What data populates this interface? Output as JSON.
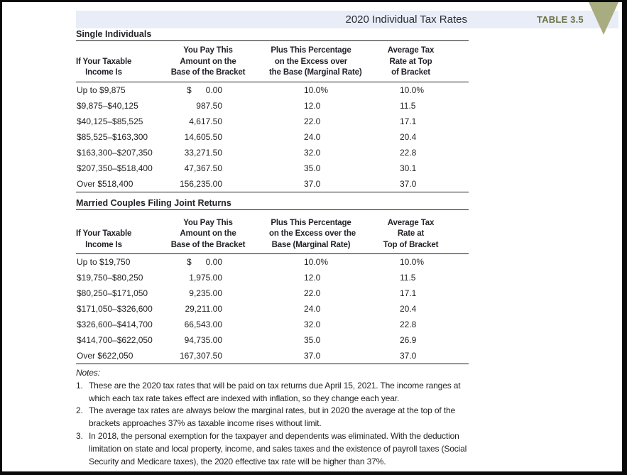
{
  "header": {
    "title": "2020 Individual Tax Rates",
    "table_label": "TABLE 3.5",
    "band_color": "#e8edf7",
    "label_color": "#6d7245",
    "triangle_color": "#a9ac81"
  },
  "tables": [
    {
      "section_title": "Single Individuals",
      "columns": [
        {
          "lines": [
            "If Your Taxable",
            "Income Is"
          ]
        },
        {
          "lines": [
            "You Pay This",
            "Amount on the",
            "Base of the Bracket"
          ]
        },
        {
          "lines": [
            "Plus This Percentage",
            "on the Excess over",
            "the Base (Marginal Rate)"
          ]
        },
        {
          "lines": [
            "Average Tax",
            "Rate at Top",
            "of Bracket"
          ]
        }
      ],
      "rows": [
        {
          "range": "Up to $9,875",
          "dollar": "$",
          "amount": "0.00",
          "marginal": "10.0%",
          "average": "10.0%"
        },
        {
          "range": "$9,875–$40,125",
          "amount": "987.50",
          "marginal": "12.0",
          "average": "11.5"
        },
        {
          "range": "$40,125–$85,525",
          "amount": "4,617.50",
          "marginal": "22.0",
          "average": "17.1"
        },
        {
          "range": "$85,525–$163,300",
          "amount": "14,605.50",
          "marginal": "24.0",
          "average": "20.4"
        },
        {
          "range": "$163,300–$207,350",
          "amount": "33,271.50",
          "marginal": "32.0",
          "average": "22.8"
        },
        {
          "range": "$207,350–$518,400",
          "amount": "47,367.50",
          "marginal": "35.0",
          "average": "30.1"
        },
        {
          "range": "Over $518,400",
          "amount": "156,235.00",
          "marginal": "37.0",
          "average": "37.0"
        }
      ]
    },
    {
      "section_title": "Married Couples Filing Joint Returns",
      "columns": [
        {
          "lines": [
            "If Your Taxable",
            "Income Is"
          ]
        },
        {
          "lines": [
            "You Pay This",
            "Amount on the",
            "Base of the Bracket"
          ]
        },
        {
          "lines": [
            "Plus This Percentage",
            "on the Excess over the",
            "Base (Marginal Rate)"
          ]
        },
        {
          "lines": [
            "Average Tax",
            "Rate at",
            "Top of Bracket"
          ]
        }
      ],
      "rows": [
        {
          "range": "Up to $19,750",
          "dollar": "$",
          "amount": "0.00",
          "marginal": "10.0%",
          "average": "10.0%"
        },
        {
          "range": "$19,750–$80,250",
          "amount": "1,975.00",
          "marginal": "12.0",
          "average": "11.5"
        },
        {
          "range": "$80,250–$171,050",
          "amount": "9,235.00",
          "marginal": "22.0",
          "average": "17.1"
        },
        {
          "range": "$171,050–$326,600",
          "amount": "29,211.00",
          "marginal": "24.0",
          "average": "20.4"
        },
        {
          "range": "$326,600–$414,700",
          "amount": "66,543.00",
          "marginal": "32.0",
          "average": "22.8"
        },
        {
          "range": "$414,700–$622,050",
          "amount": "94,735.00",
          "marginal": "35.0",
          "average": "26.9"
        },
        {
          "range": "Over $622,050",
          "amount": "167,307.50",
          "marginal": "37.0",
          "average": "37.0"
        }
      ]
    }
  ],
  "notes": {
    "label": "Notes:",
    "items": [
      {
        "number": "1.",
        "lines": [
          "These are the 2020 tax rates that will be paid on tax returns due April 15, 2021. The income ranges at",
          "which each tax rate takes effect are indexed with inflation, so they change each year."
        ]
      },
      {
        "number": "2.",
        "lines": [
          "The average tax rates are always below the marginal rates, but in 2020 the average at the top of the",
          "brackets approaches 37% as taxable income rises without limit."
        ]
      },
      {
        "number": "3.",
        "lines": [
          "In 2018, the personal exemption for the taxpayer and dependents was eliminated. With the deduction",
          "limitation on state and local property, income, and sales taxes and the existence of payroll taxes (Social",
          "Security and Medicare taxes), the 2020 effective tax rate will be higher than 37%."
        ]
      }
    ]
  }
}
